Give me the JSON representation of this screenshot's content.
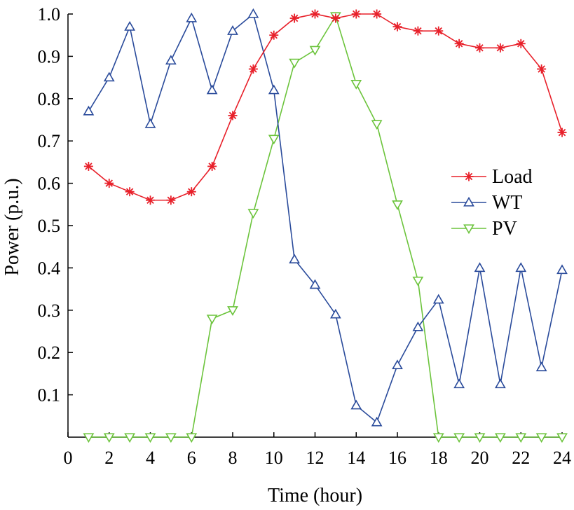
{
  "chart_data": {
    "type": "line",
    "xlabel": "Time (hour)",
    "ylabel": "Power (p.u.)",
    "xlim": [
      0,
      24
    ],
    "ylim": [
      0,
      1.0
    ],
    "xticks": [
      "0",
      "2",
      "4",
      "6",
      "8",
      "10",
      "12",
      "14",
      "16",
      "18",
      "20",
      "22",
      "24"
    ],
    "yticks": [
      "0.1",
      "0.2",
      "0.3",
      "0.4",
      "0.5",
      "0.6",
      "0.7",
      "0.8",
      "0.9",
      "1.0"
    ],
    "grid": false,
    "legend_position": "right",
    "x": [
      1,
      2,
      3,
      4,
      5,
      6,
      7,
      8,
      9,
      10,
      11,
      12,
      13,
      14,
      15,
      16,
      17,
      18,
      19,
      20,
      21,
      22,
      23,
      24
    ],
    "series": [
      {
        "name": "Load",
        "color": "#e8202a",
        "marker": "asterisk",
        "values": [
          0.64,
          0.6,
          0.58,
          0.56,
          0.56,
          0.58,
          0.64,
          0.76,
          0.87,
          0.95,
          0.99,
          1.0,
          0.99,
          1.0,
          1.0,
          0.97,
          0.96,
          0.96,
          0.93,
          0.92,
          0.92,
          0.93,
          0.87,
          0.72
        ]
      },
      {
        "name": "WT",
        "color": "#2a4b9b",
        "marker": "triangle-up",
        "values": [
          0.77,
          0.85,
          0.97,
          0.74,
          0.89,
          0.99,
          0.82,
          0.96,
          1.0,
          0.82,
          0.42,
          0.36,
          0.29,
          0.075,
          0.035,
          0.17,
          0.26,
          0.325,
          0.125,
          0.4,
          0.125,
          0.4,
          0.165,
          0.395
        ]
      },
      {
        "name": "PV",
        "color": "#6cc43c",
        "marker": "triangle-down",
        "values": [
          0,
          0,
          0,
          0,
          0,
          0,
          0.28,
          0.3,
          0.53,
          0.705,
          0.885,
          0.915,
          0.995,
          0.835,
          0.74,
          0.55,
          0.37,
          0,
          0,
          0,
          0,
          0,
          0,
          0
        ]
      }
    ]
  }
}
